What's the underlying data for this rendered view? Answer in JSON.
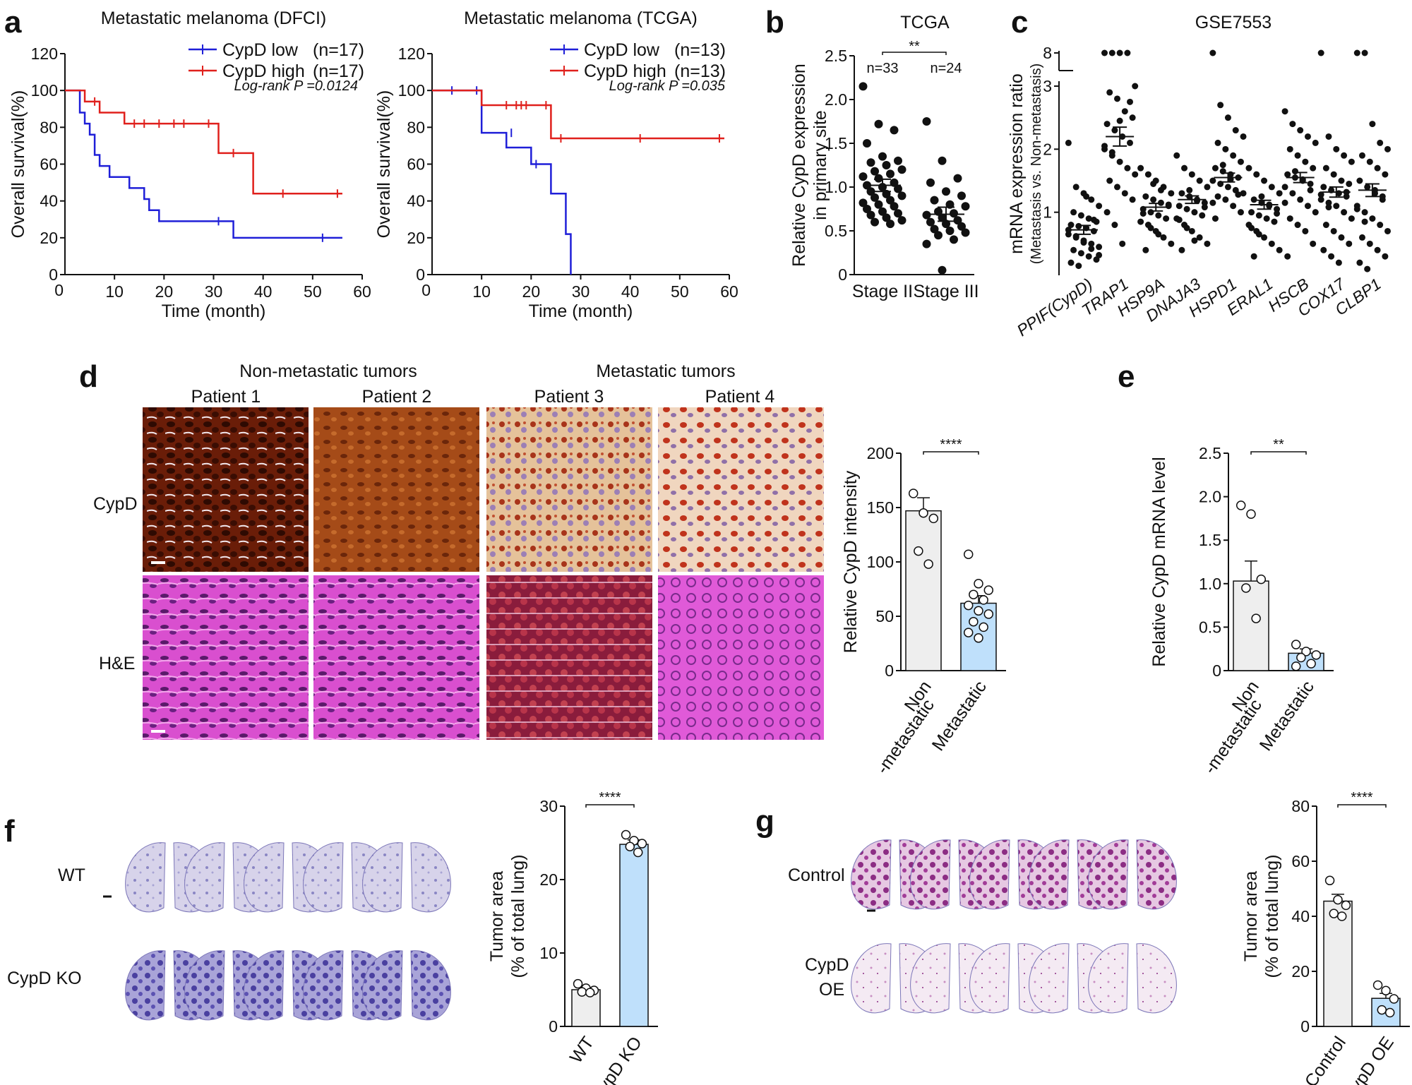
{
  "figure": {
    "panel_labels": [
      "a",
      "b",
      "c",
      "d",
      "e",
      "f",
      "g"
    ],
    "d": {
      "header_nonmet": "Non-metastatic tumors",
      "header_met": "Metastatic tumors",
      "patients": [
        "Patient 1",
        "Patient 2",
        "Patient 3",
        "Patient 4"
      ],
      "rows": [
        "CypD",
        "H&E"
      ]
    },
    "f": {
      "rows": [
        "WT",
        "CypD KO"
      ]
    },
    "g": {
      "rows": [
        "Control",
        "CypD\nOE"
      ]
    }
  },
  "colors": {
    "low": "#1f1fd8",
    "high": "#e0201c",
    "bar_light": "#eeeeee",
    "bar_blue": "#bfe0fb"
  },
  "chart_data": [
    {
      "id": "a1",
      "type": "line",
      "title": "Metastatic melanoma (DFCI)",
      "xlabel": "Time (month)",
      "ylabel": "Overall survival(%)",
      "xlim": [
        0,
        60
      ],
      "ylim": [
        0,
        120
      ],
      "xticks": [
        10,
        20,
        30,
        40,
        50,
        60
      ],
      "yticks": [
        0,
        20,
        40,
        60,
        80,
        100,
        120
      ],
      "annotation": "Log-rank P =0.0124",
      "series": [
        {
          "name": "CypD low",
          "n_label": "(n=17)",
          "color": "#1f1fd8",
          "steps": [
            [
              0,
              100
            ],
            [
              3,
              88
            ],
            [
              4,
              82
            ],
            [
              5,
              76
            ],
            [
              6,
              65
            ],
            [
              7,
              59
            ],
            [
              9,
              53
            ],
            [
              13,
              47
            ],
            [
              16,
              41
            ],
            [
              17,
              35
            ],
            [
              19,
              29
            ],
            [
              34,
              20
            ],
            [
              56,
              20
            ]
          ],
          "censor": [
            [
              52,
              20
            ],
            [
              31,
              29
            ]
          ]
        },
        {
          "name": "CypD high",
          "n_label": "(n=17)",
          "color": "#e0201c",
          "steps": [
            [
              0,
              100
            ],
            [
              4,
              94
            ],
            [
              7,
              88
            ],
            [
              12,
              82
            ],
            [
              31,
              66
            ],
            [
              38,
              44
            ],
            [
              56,
              44
            ]
          ],
          "censor": [
            [
              6,
              94
            ],
            [
              14,
              82
            ],
            [
              16,
              82
            ],
            [
              19,
              82
            ],
            [
              22,
              82
            ],
            [
              24,
              82
            ],
            [
              29,
              82
            ],
            [
              34,
              66
            ],
            [
              44,
              44
            ],
            [
              55,
              44
            ]
          ]
        }
      ]
    },
    {
      "id": "a2",
      "type": "line",
      "title": "Metastatic melanoma (TCGA)",
      "xlabel": "Time (month)",
      "ylabel": "Overall survival(%)",
      "xlim": [
        0,
        60
      ],
      "ylim": [
        0,
        120
      ],
      "xticks": [
        10,
        20,
        30,
        40,
        50,
        60
      ],
      "yticks": [
        0,
        20,
        40,
        60,
        80,
        100,
        120
      ],
      "annotation": "Log-rank P =0.035",
      "series": [
        {
          "name": "CypD low",
          "n_label": "(n=13)",
          "color": "#1f1fd8",
          "steps": [
            [
              0,
              100
            ],
            [
              10,
              77
            ],
            [
              15,
              69
            ],
            [
              20,
              60
            ],
            [
              24,
              44
            ],
            [
              27,
              22
            ],
            [
              28,
              0
            ]
          ],
          "censor": [
            [
              4,
              100
            ],
            [
              9,
              100
            ],
            [
              16,
              77
            ],
            [
              21,
              60
            ]
          ]
        },
        {
          "name": "CypD high",
          "n_label": "(n=13)",
          "color": "#e0201c",
          "steps": [
            [
              0,
              100
            ],
            [
              10,
              92
            ],
            [
              24,
              74
            ],
            [
              59,
              74
            ]
          ],
          "censor": [
            [
              15,
              92
            ],
            [
              17,
              92
            ],
            [
              18,
              92
            ],
            [
              19,
              92
            ],
            [
              23,
              92
            ],
            [
              26,
              74
            ],
            [
              42,
              74
            ],
            [
              58,
              74
            ]
          ]
        }
      ]
    },
    {
      "id": "b",
      "type": "scatter",
      "title": "TCGA",
      "ylabel": "Relative CypD expression\nin primary site",
      "categories": [
        "Stage II",
        "Stage III"
      ],
      "n_labels": [
        "n=33",
        "n=24"
      ],
      "significance": "**",
      "ylim": [
        0,
        2.5
      ],
      "yticks": [
        0,
        0.5,
        1.0,
        1.5,
        2.0,
        2.5
      ],
      "means": [
        1.02,
        0.69
      ],
      "sems": [
        0.07,
        0.08
      ],
      "points": [
        [
          2.15,
          1.72,
          1.65,
          1.5,
          1.35,
          1.3,
          1.28,
          1.25,
          1.2,
          1.18,
          1.15,
          1.12,
          1.1,
          1.05,
          1.02,
          1.0,
          0.98,
          0.95,
          0.92,
          0.9,
          0.88,
          0.85,
          0.82,
          0.8,
          0.78,
          0.75,
          0.72,
          0.7,
          0.68,
          0.65,
          0.62,
          0.6,
          0.58
        ],
        [
          1.75,
          1.3,
          1.1,
          1.05,
          0.95,
          0.9,
          0.85,
          0.8,
          0.78,
          0.72,
          0.7,
          0.68,
          0.65,
          0.62,
          0.6,
          0.58,
          0.55,
          0.52,
          0.5,
          0.48,
          0.45,
          0.4,
          0.35,
          0.05
        ]
      ]
    },
    {
      "id": "c",
      "type": "scatter",
      "title": "GSE7553",
      "ylabel": "mRNA expression ratio\n(Metastasis vs. Non-metastasis)",
      "categories": [
        "PPIF(CypD)",
        "TRAP1",
        "HSP9A",
        "DNAJA3",
        "HSPD1",
        "ERAL1",
        "HSCB",
        "COX17",
        "CLBP1"
      ],
      "yticks": [
        1,
        2,
        3,
        8
      ],
      "means": [
        0.72,
        2.2,
        1.08,
        1.2,
        1.55,
        1.12,
        1.55,
        1.32,
        1.35
      ],
      "sems": [
        0.07,
        0.15,
        0.06,
        0.06,
        0.07,
        0.07,
        0.08,
        0.08,
        0.1
      ],
      "points": [
        [
          2.1,
          1.4,
          1.3,
          1.2,
          1.1,
          1.0,
          0.95,
          0.9,
          0.85,
          0.8,
          0.78,
          0.75,
          0.7,
          0.65,
          0.6,
          0.55,
          0.5,
          0.45,
          0.4,
          0.35,
          0.3,
          0.25,
          0.2,
          0.15,
          1.25,
          0.88,
          0.72,
          0.62,
          0.52,
          0.42,
          0.32
        ],
        [
          3.6,
          3.4,
          3.3,
          3.2,
          3.0,
          2.9,
          2.8,
          2.6,
          2.5,
          2.4,
          2.3,
          2.2,
          2.1,
          2.0,
          1.9,
          1.8,
          1.7,
          1.6,
          1.5,
          1.4,
          1.3,
          1.2,
          1.0,
          0.8,
          0.5,
          2.75,
          2.05,
          1.95,
          2.45
        ],
        [
          1.7,
          1.6,
          1.5,
          1.4,
          1.3,
          1.25,
          1.2,
          1.15,
          1.1,
          1.05,
          1.0,
          0.95,
          0.9,
          0.85,
          0.8,
          0.7,
          0.6,
          0.5,
          0.4,
          1.45,
          1.35,
          1.12,
          0.98,
          0.75,
          0.65
        ],
        [
          1.9,
          1.7,
          1.6,
          1.5,
          1.4,
          1.3,
          1.25,
          1.2,
          1.15,
          1.1,
          1.05,
          1.0,
          0.95,
          0.9,
          0.8,
          0.7,
          0.6,
          0.5,
          0.4,
          1.35,
          1.18,
          1.08,
          0.88,
          0.75,
          0.55
        ],
        [
          3.1,
          2.7,
          2.5,
          2.3,
          2.2,
          2.1,
          2.0,
          1.9,
          1.8,
          1.7,
          1.65,
          1.6,
          1.55,
          1.5,
          1.45,
          1.4,
          1.35,
          1.3,
          1.25,
          1.2,
          1.1,
          1.0,
          0.9,
          1.75,
          1.52,
          1.28,
          1.15
        ],
        [
          1.7,
          1.6,
          1.5,
          1.4,
          1.3,
          1.2,
          1.15,
          1.1,
          1.05,
          1.0,
          0.95,
          0.9,
          0.85,
          0.8,
          0.7,
          0.6,
          0.5,
          0.4,
          0.3,
          1.25,
          1.12,
          0.98,
          0.75,
          0.65
        ],
        [
          2.6,
          2.4,
          2.3,
          2.2,
          2.1,
          2.0,
          1.9,
          1.8,
          1.7,
          1.6,
          1.55,
          1.5,
          1.45,
          1.4,
          1.3,
          1.2,
          1.1,
          1.0,
          0.9,
          0.8,
          0.7,
          0.5,
          0.3,
          1.65,
          1.52,
          1.35,
          1.15
        ],
        [
          3.6,
          2.2,
          2.0,
          1.9,
          1.8,
          1.7,
          1.6,
          1.5,
          1.45,
          1.4,
          1.35,
          1.3,
          1.25,
          1.2,
          1.15,
          1.1,
          1.0,
          0.9,
          0.8,
          0.7,
          0.6,
          0.5,
          0.4,
          0.3,
          0.2,
          1.32,
          1.28,
          1.08
        ],
        [
          3.7,
          3.5,
          2.4,
          2.1,
          2.0,
          1.9,
          1.8,
          1.7,
          1.6,
          1.5,
          1.4,
          1.3,
          1.2,
          1.1,
          1.0,
          0.9,
          0.8,
          0.7,
          0.6,
          0.5,
          0.4,
          0.3,
          0.2,
          0.1,
          1.35,
          1.25,
          1.05,
          0.85
        ]
      ]
    },
    {
      "id": "d_bar",
      "type": "bar",
      "ylabel": "Relative CypD intensity",
      "categories": [
        "Non\n-metastatic",
        "Metastatic"
      ],
      "values": [
        147,
        62
      ],
      "sems": [
        12,
        7
      ],
      "significance": "****",
      "ylim": [
        0,
        200
      ],
      "yticks": [
        0,
        50,
        100,
        150,
        200
      ],
      "points": [
        [
          163,
          145,
          140,
          110,
          98
        ],
        [
          107,
          80,
          74,
          70,
          65,
          60,
          55,
          52,
          45,
          40,
          35,
          30
        ]
      ]
    },
    {
      "id": "e",
      "type": "bar",
      "ylabel": "Relative CypD mRNA level",
      "categories": [
        "Non\n-metastatic",
        "Metastatic"
      ],
      "values": [
        1.03,
        0.2
      ],
      "sems": [
        0.23,
        0.05
      ],
      "significance": "**",
      "ylim": [
        0,
        2.5
      ],
      "yticks": [
        0,
        0.5,
        1.0,
        1.5,
        2.0,
        2.5
      ],
      "points": [
        [
          1.9,
          1.8,
          1.05,
          0.95,
          0.6
        ],
        [
          0.3,
          0.22,
          0.18,
          0.15,
          0.08,
          0.05
        ]
      ]
    },
    {
      "id": "f_bar",
      "type": "bar",
      "ylabel": "Tumor area\n(% of total lung)",
      "categories": [
        "WT",
        "CypD KO"
      ],
      "values": [
        5.0,
        24.8
      ],
      "sems": [
        0.3,
        0.6
      ],
      "significance": "****",
      "ylim": [
        0,
        30
      ],
      "yticks": [
        0,
        10,
        20,
        30
      ],
      "points": [
        [
          5.8,
          5.2,
          4.9,
          4.7,
          4.6
        ],
        [
          26.1,
          25.3,
          24.9,
          24.5,
          23.7
        ]
      ]
    },
    {
      "id": "g_bar",
      "type": "bar",
      "ylabel": "Tumor area\n(% of total lung)",
      "categories": [
        "Control",
        "CypD OE"
      ],
      "values": [
        45.5,
        10.2
      ],
      "sems": [
        2.5,
        1.8
      ],
      "significance": "****",
      "ylim": [
        0,
        80
      ],
      "yticks": [
        0,
        20,
        40,
        60,
        80
      ],
      "points": [
        [
          53,
          46,
          44,
          41,
          40
        ],
        [
          15,
          13,
          10,
          6,
          5
        ]
      ]
    }
  ]
}
